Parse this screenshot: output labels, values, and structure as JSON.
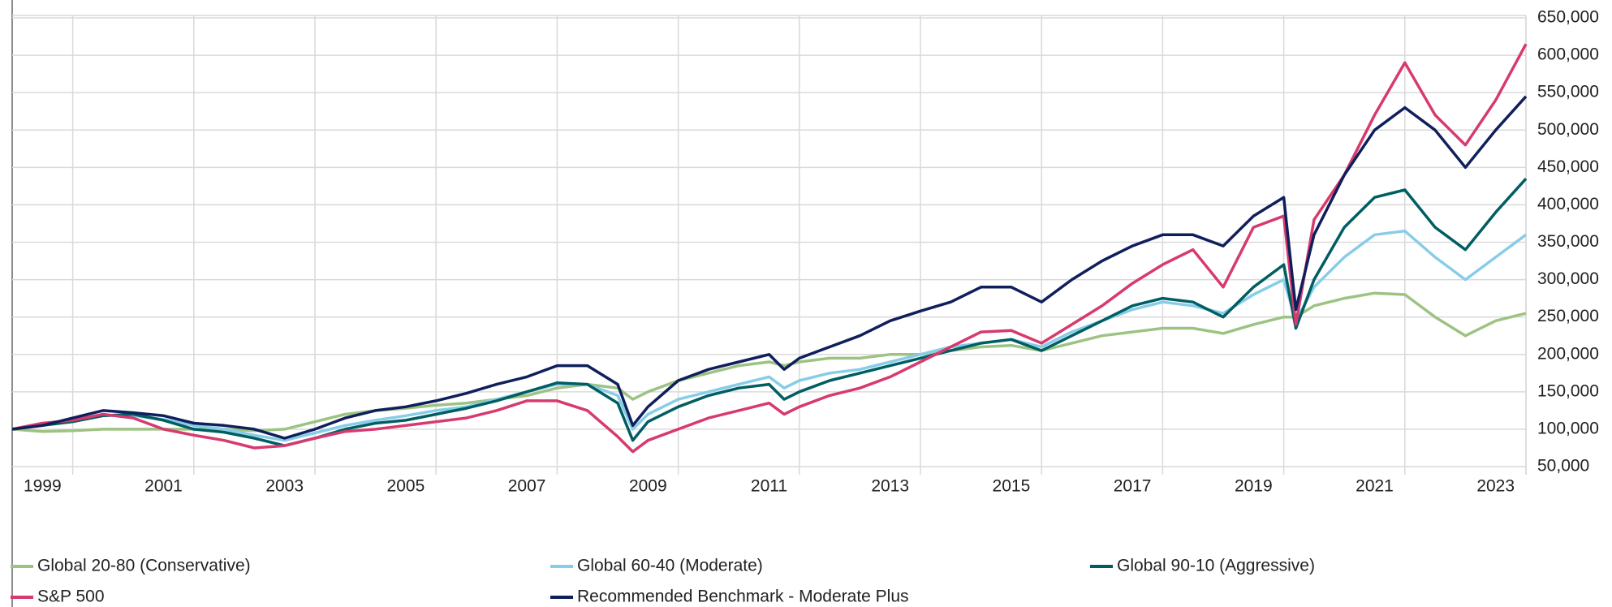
{
  "chart_data": {
    "type": "line",
    "x": [
      1998,
      1998.5,
      1999,
      1999.5,
      2000,
      2000.5,
      2001,
      2001.5,
      2002,
      2002.5,
      2003,
      2003.5,
      2004,
      2004.5,
      2005,
      2005.5,
      2006,
      2006.5,
      2007,
      2007.5,
      2008,
      2008.25,
      2008.5,
      2009,
      2009.5,
      2010,
      2010.5,
      2010.75,
      2011,
      2011.5,
      2012,
      2012.5,
      2013,
      2013.5,
      2014,
      2014.5,
      2015,
      2015.5,
      2016,
      2016.5,
      2017,
      2017.5,
      2018,
      2018.5,
      2019,
      2019.2,
      2019.5,
      2020,
      2020.5,
      2021,
      2021.5,
      2022,
      2022.5,
      2023
    ],
    "series": [
      {
        "name": "Global 20-80 (Conservative)",
        "color": "#9dc383",
        "values": [
          100000,
          97000,
          98000,
          100000,
          100000,
          100000,
          100000,
          100000,
          98000,
          100000,
          110000,
          120000,
          125000,
          128000,
          132000,
          135000,
          140000,
          145000,
          155000,
          160000,
          155000,
          140000,
          150000,
          165000,
          175000,
          185000,
          190000,
          185000,
          190000,
          195000,
          195000,
          200000,
          200000,
          205000,
          210000,
          212000,
          205000,
          215000,
          225000,
          230000,
          235000,
          235000,
          228000,
          240000,
          250000,
          250000,
          265000,
          275000,
          282000,
          280000,
          250000,
          225000,
          245000,
          255000
        ]
      },
      {
        "name": "Global 60-40 (Moderate)",
        "color": "#87cde8",
        "values": [
          100000,
          105000,
          112000,
          118000,
          118000,
          113000,
          105000,
          100000,
          92000,
          85000,
          95000,
          105000,
          112000,
          118000,
          125000,
          130000,
          140000,
          150000,
          160000,
          160000,
          145000,
          100000,
          120000,
          140000,
          150000,
          160000,
          170000,
          155000,
          165000,
          175000,
          180000,
          190000,
          200000,
          210000,
          215000,
          220000,
          210000,
          230000,
          245000,
          260000,
          270000,
          265000,
          255000,
          280000,
          300000,
          245000,
          290000,
          330000,
          360000,
          365000,
          330000,
          300000,
          330000,
          360000
        ]
      },
      {
        "name": "Global 90-10 (Aggressive)",
        "color": "#005e63",
        "values": [
          100000,
          105000,
          110000,
          118000,
          120000,
          112000,
          100000,
          96000,
          88000,
          78000,
          88000,
          100000,
          108000,
          112000,
          120000,
          128000,
          138000,
          150000,
          162000,
          160000,
          135000,
          85000,
          110000,
          130000,
          145000,
          155000,
          160000,
          140000,
          150000,
          165000,
          175000,
          185000,
          195000,
          205000,
          215000,
          220000,
          205000,
          225000,
          245000,
          265000,
          275000,
          270000,
          250000,
          290000,
          320000,
          235000,
          300000,
          370000,
          410000,
          420000,
          370000,
          340000,
          390000,
          435000
        ]
      },
      {
        "name": "S&P 500",
        "color": "#d63a6e",
        "values": [
          100000,
          108000,
          112000,
          120000,
          115000,
          100000,
          92000,
          85000,
          75000,
          78000,
          88000,
          97000,
          100000,
          105000,
          110000,
          115000,
          125000,
          138000,
          138000,
          125000,
          90000,
          70000,
          85000,
          100000,
          115000,
          125000,
          135000,
          120000,
          130000,
          145000,
          155000,
          170000,
          190000,
          210000,
          230000,
          232000,
          215000,
          240000,
          265000,
          295000,
          320000,
          340000,
          290000,
          370000,
          385000,
          240000,
          380000,
          440000,
          520000,
          590000,
          520000,
          480000,
          540000,
          615000
        ]
      },
      {
        "name": "Recommended Benchmark - Moderate Plus",
        "color": "#0f1f5c",
        "values": [
          100000,
          105000,
          115000,
          125000,
          122000,
          118000,
          108000,
          105000,
          100000,
          88000,
          100000,
          115000,
          125000,
          130000,
          138000,
          148000,
          160000,
          170000,
          185000,
          185000,
          160000,
          105000,
          130000,
          165000,
          180000,
          190000,
          200000,
          180000,
          195000,
          210000,
          225000,
          245000,
          258000,
          270000,
          290000,
          290000,
          270000,
          300000,
          325000,
          345000,
          360000,
          360000,
          345000,
          385000,
          410000,
          260000,
          360000,
          440000,
          500000,
          530000,
          500000,
          450000,
          500000,
          545000
        ]
      }
    ],
    "xlim": [
      1998,
      2023
    ],
    "xticks": [
      1999,
      2001,
      2003,
      2005,
      2007,
      2009,
      2011,
      2013,
      2015,
      2017,
      2019,
      2021,
      2023
    ],
    "ylim": [
      50000,
      650000
    ],
    "yticks": [
      {
        "value": 50000,
        "label": "50,000"
      },
      {
        "value": 100000,
        "label": "100,000"
      },
      {
        "value": 150000,
        "label": "150,000"
      },
      {
        "value": 200000,
        "label": "200,000"
      },
      {
        "value": 250000,
        "label": "250,000"
      },
      {
        "value": 300000,
        "label": "300,000"
      },
      {
        "value": 350000,
        "label": "350,000"
      },
      {
        "value": 400000,
        "label": "400,000"
      },
      {
        "value": 450000,
        "label": "450,000"
      },
      {
        "value": 500000,
        "label": "500,000"
      },
      {
        "value": 550000,
        "label": "550,000"
      },
      {
        "value": 600000,
        "label": "600,000"
      },
      {
        "value": 650000,
        "label": "650,000"
      }
    ],
    "grid": true
  }
}
